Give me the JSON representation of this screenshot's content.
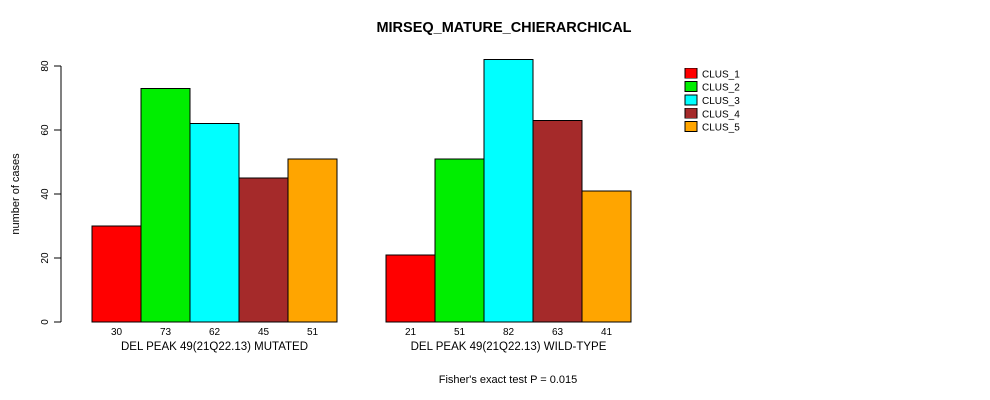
{
  "title": "MIRSEQ_MATURE_CHIERARCHICAL",
  "caption": "Fisher's exact test P = 0.015",
  "chart_data": {
    "type": "bar",
    "title": "MIRSEQ_MATURE_CHIERARCHICAL",
    "ylabel": "number of cases",
    "yticks": [
      0,
      20,
      40,
      60,
      80
    ],
    "ylim": [
      0,
      84
    ],
    "grid": false,
    "legend_position": "right",
    "bar_value_labels": true,
    "series": [
      {
        "name": "CLUS_1",
        "color": "#FF0000"
      },
      {
        "name": "CLUS_2",
        "color": "#00EE00"
      },
      {
        "name": "CLUS_3",
        "color": "#00FFFF"
      },
      {
        "name": "CLUS_4",
        "color": "#A52A2A"
      },
      {
        "name": "CLUS_5",
        "color": "#FFA500"
      }
    ],
    "groups": [
      {
        "label": "DEL PEAK 49(21Q22.13) MUTATED",
        "values": [
          30,
          73,
          62,
          45,
          51
        ]
      },
      {
        "label": "DEL PEAK 49(21Q22.13) WILD-TYPE",
        "values": [
          21,
          51,
          82,
          63,
          41
        ]
      }
    ],
    "annotation": "Fisher's exact test P = 0.015"
  }
}
